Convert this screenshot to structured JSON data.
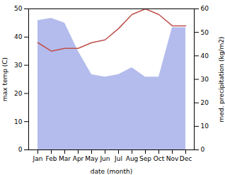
{
  "chart_data": {
    "type": "line",
    "categories": [
      "Jan",
      "Feb",
      "Mar",
      "Apr",
      "May",
      "Jun",
      "Jul",
      "Aug",
      "Sep",
      "Oct",
      "Nov",
      "Dec"
    ],
    "series": [
      {
        "type": "area",
        "axis": "y2",
        "color": "#b3bcec",
        "values": [
          55,
          56,
          54,
          42,
          32,
          31,
          32,
          35,
          31,
          31,
          52,
          52
        ]
      },
      {
        "type": "line",
        "axis": "y",
        "color": "#c0504d",
        "values": [
          38,
          35,
          36,
          36,
          38,
          39,
          43,
          48,
          50,
          48,
          44,
          44
        ]
      }
    ],
    "xlabel": "date (month)",
    "ylabel": "max temp (C)",
    "y2label": "med. precipitation (kg/m2)",
    "ylim": [
      0,
      50
    ],
    "yticks": [
      0,
      10,
      20,
      30,
      40,
      50
    ],
    "y2lim": [
      0,
      60
    ],
    "y2ticks": [
      0,
      10,
      20,
      30,
      40,
      50,
      60
    ],
    "grid": false
  }
}
